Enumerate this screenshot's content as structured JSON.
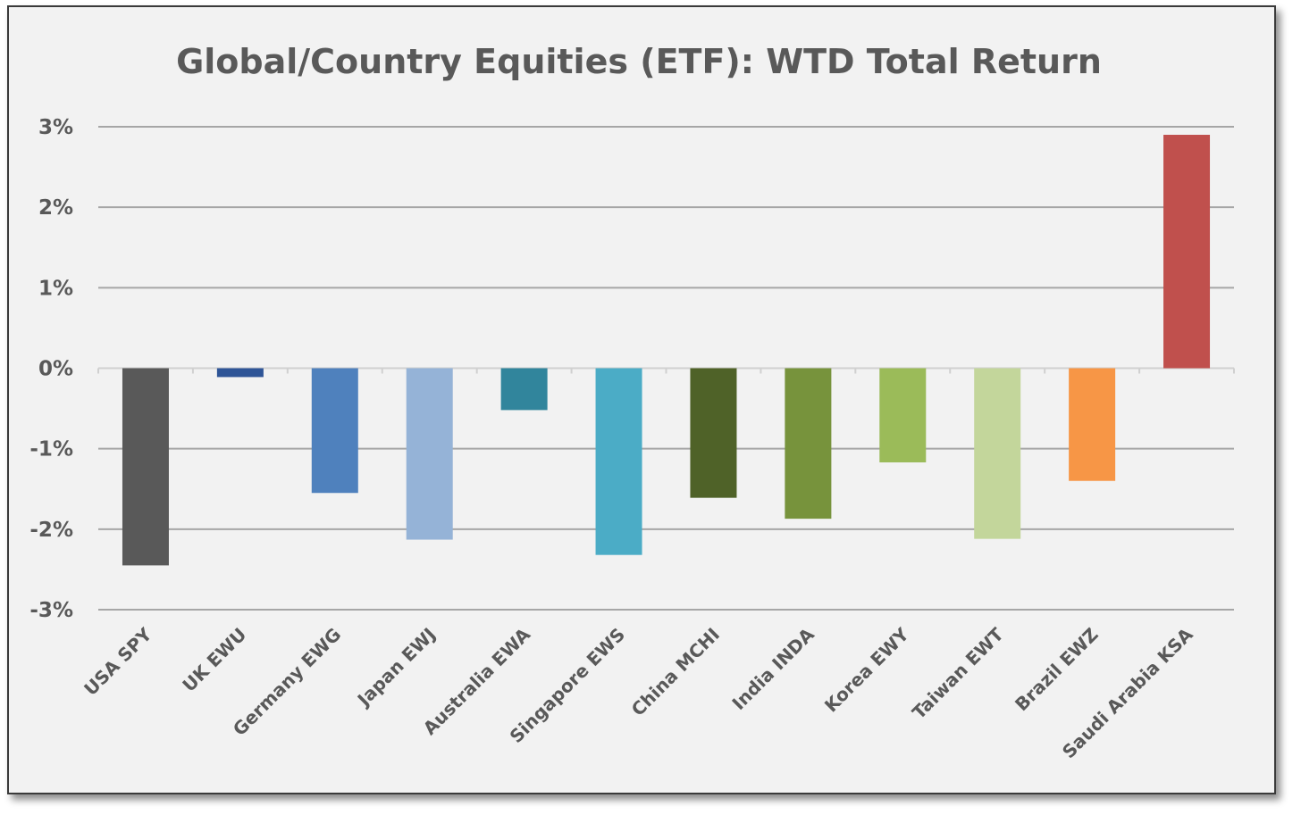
{
  "chart_data": {
    "type": "bar",
    "title": "Global/Country Equities (ETF): WTD Total Return",
    "xlabel": "",
    "ylabel": "",
    "ylim": [
      -3,
      3
    ],
    "yticks": [
      3,
      2,
      1,
      0,
      -1,
      -2,
      -3
    ],
    "ytick_labels": [
      "3%",
      "2%",
      "1%",
      "0%",
      "-1%",
      "-2%",
      "-3%"
    ],
    "grid": true,
    "legend": "none",
    "categories": [
      "USA SPY",
      "UK EWU",
      "Germany EWG",
      "Japan EWJ",
      "Australia EWA",
      "Singapore EWS",
      "China MCHI",
      "India INDA",
      "Korea EWY",
      "Taiwan EWT",
      "Brazil EWZ",
      "Saudi Arabia KSA"
    ],
    "values": [
      -2.45,
      -0.11,
      -1.55,
      -2.13,
      -0.52,
      -2.32,
      -1.61,
      -1.87,
      -1.17,
      -2.12,
      -1.4,
      2.9
    ],
    "colors": [
      "#595959",
      "#2f5597",
      "#4f81bd",
      "#95b3d7",
      "#31859c",
      "#4bacc6",
      "#4f6228",
      "#77933c",
      "#9bbb59",
      "#c3d69b",
      "#f79646",
      "#c0504d"
    ]
  }
}
